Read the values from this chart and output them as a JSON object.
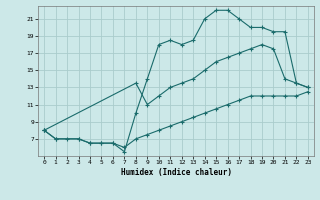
{
  "title": "",
  "xlabel": "Humidex (Indice chaleur)",
  "bg_color": "#cce8e8",
  "grid_color": "#aacccc",
  "line_color": "#1a6b6b",
  "xlim": [
    -0.5,
    23.5
  ],
  "ylim": [
    5,
    22.5
  ],
  "xticks": [
    0,
    1,
    2,
    3,
    4,
    5,
    6,
    7,
    8,
    9,
    10,
    11,
    12,
    13,
    14,
    15,
    16,
    17,
    18,
    19,
    20,
    21,
    22,
    23
  ],
  "yticks": [
    7,
    9,
    11,
    13,
    15,
    17,
    19,
    21
  ],
  "line1_x": [
    0,
    1,
    3,
    4,
    5,
    6,
    7,
    8,
    9,
    10,
    11,
    12,
    13,
    14,
    15,
    16,
    17,
    18,
    19,
    20,
    21,
    22,
    23
  ],
  "line1_y": [
    8,
    7,
    7,
    6.5,
    6.5,
    6.5,
    5.5,
    10,
    14,
    18,
    18.5,
    18,
    18.5,
    21,
    22,
    22,
    21,
    20,
    20,
    19.5,
    19.5,
    13.5,
    13
  ],
  "line2_x": [
    0,
    8,
    9,
    10,
    11,
    12,
    13,
    14,
    15,
    16,
    17,
    18,
    19,
    20,
    21,
    22,
    23
  ],
  "line2_y": [
    8,
    13.5,
    11,
    12,
    13,
    13.5,
    14,
    15,
    16,
    16.5,
    17,
    17.5,
    18,
    17.5,
    14,
    13.5,
    13
  ],
  "line3_x": [
    0,
    1,
    2,
    3,
    4,
    5,
    6,
    7,
    8,
    9,
    10,
    11,
    12,
    13,
    14,
    15,
    16,
    17,
    18,
    19,
    20,
    21,
    22,
    23
  ],
  "line3_y": [
    8,
    7,
    7,
    7,
    6.5,
    6.5,
    6.5,
    6,
    7,
    7.5,
    8,
    8.5,
    9,
    9.5,
    10,
    10.5,
    11,
    11.5,
    12,
    12,
    12,
    12,
    12,
    12.5
  ]
}
